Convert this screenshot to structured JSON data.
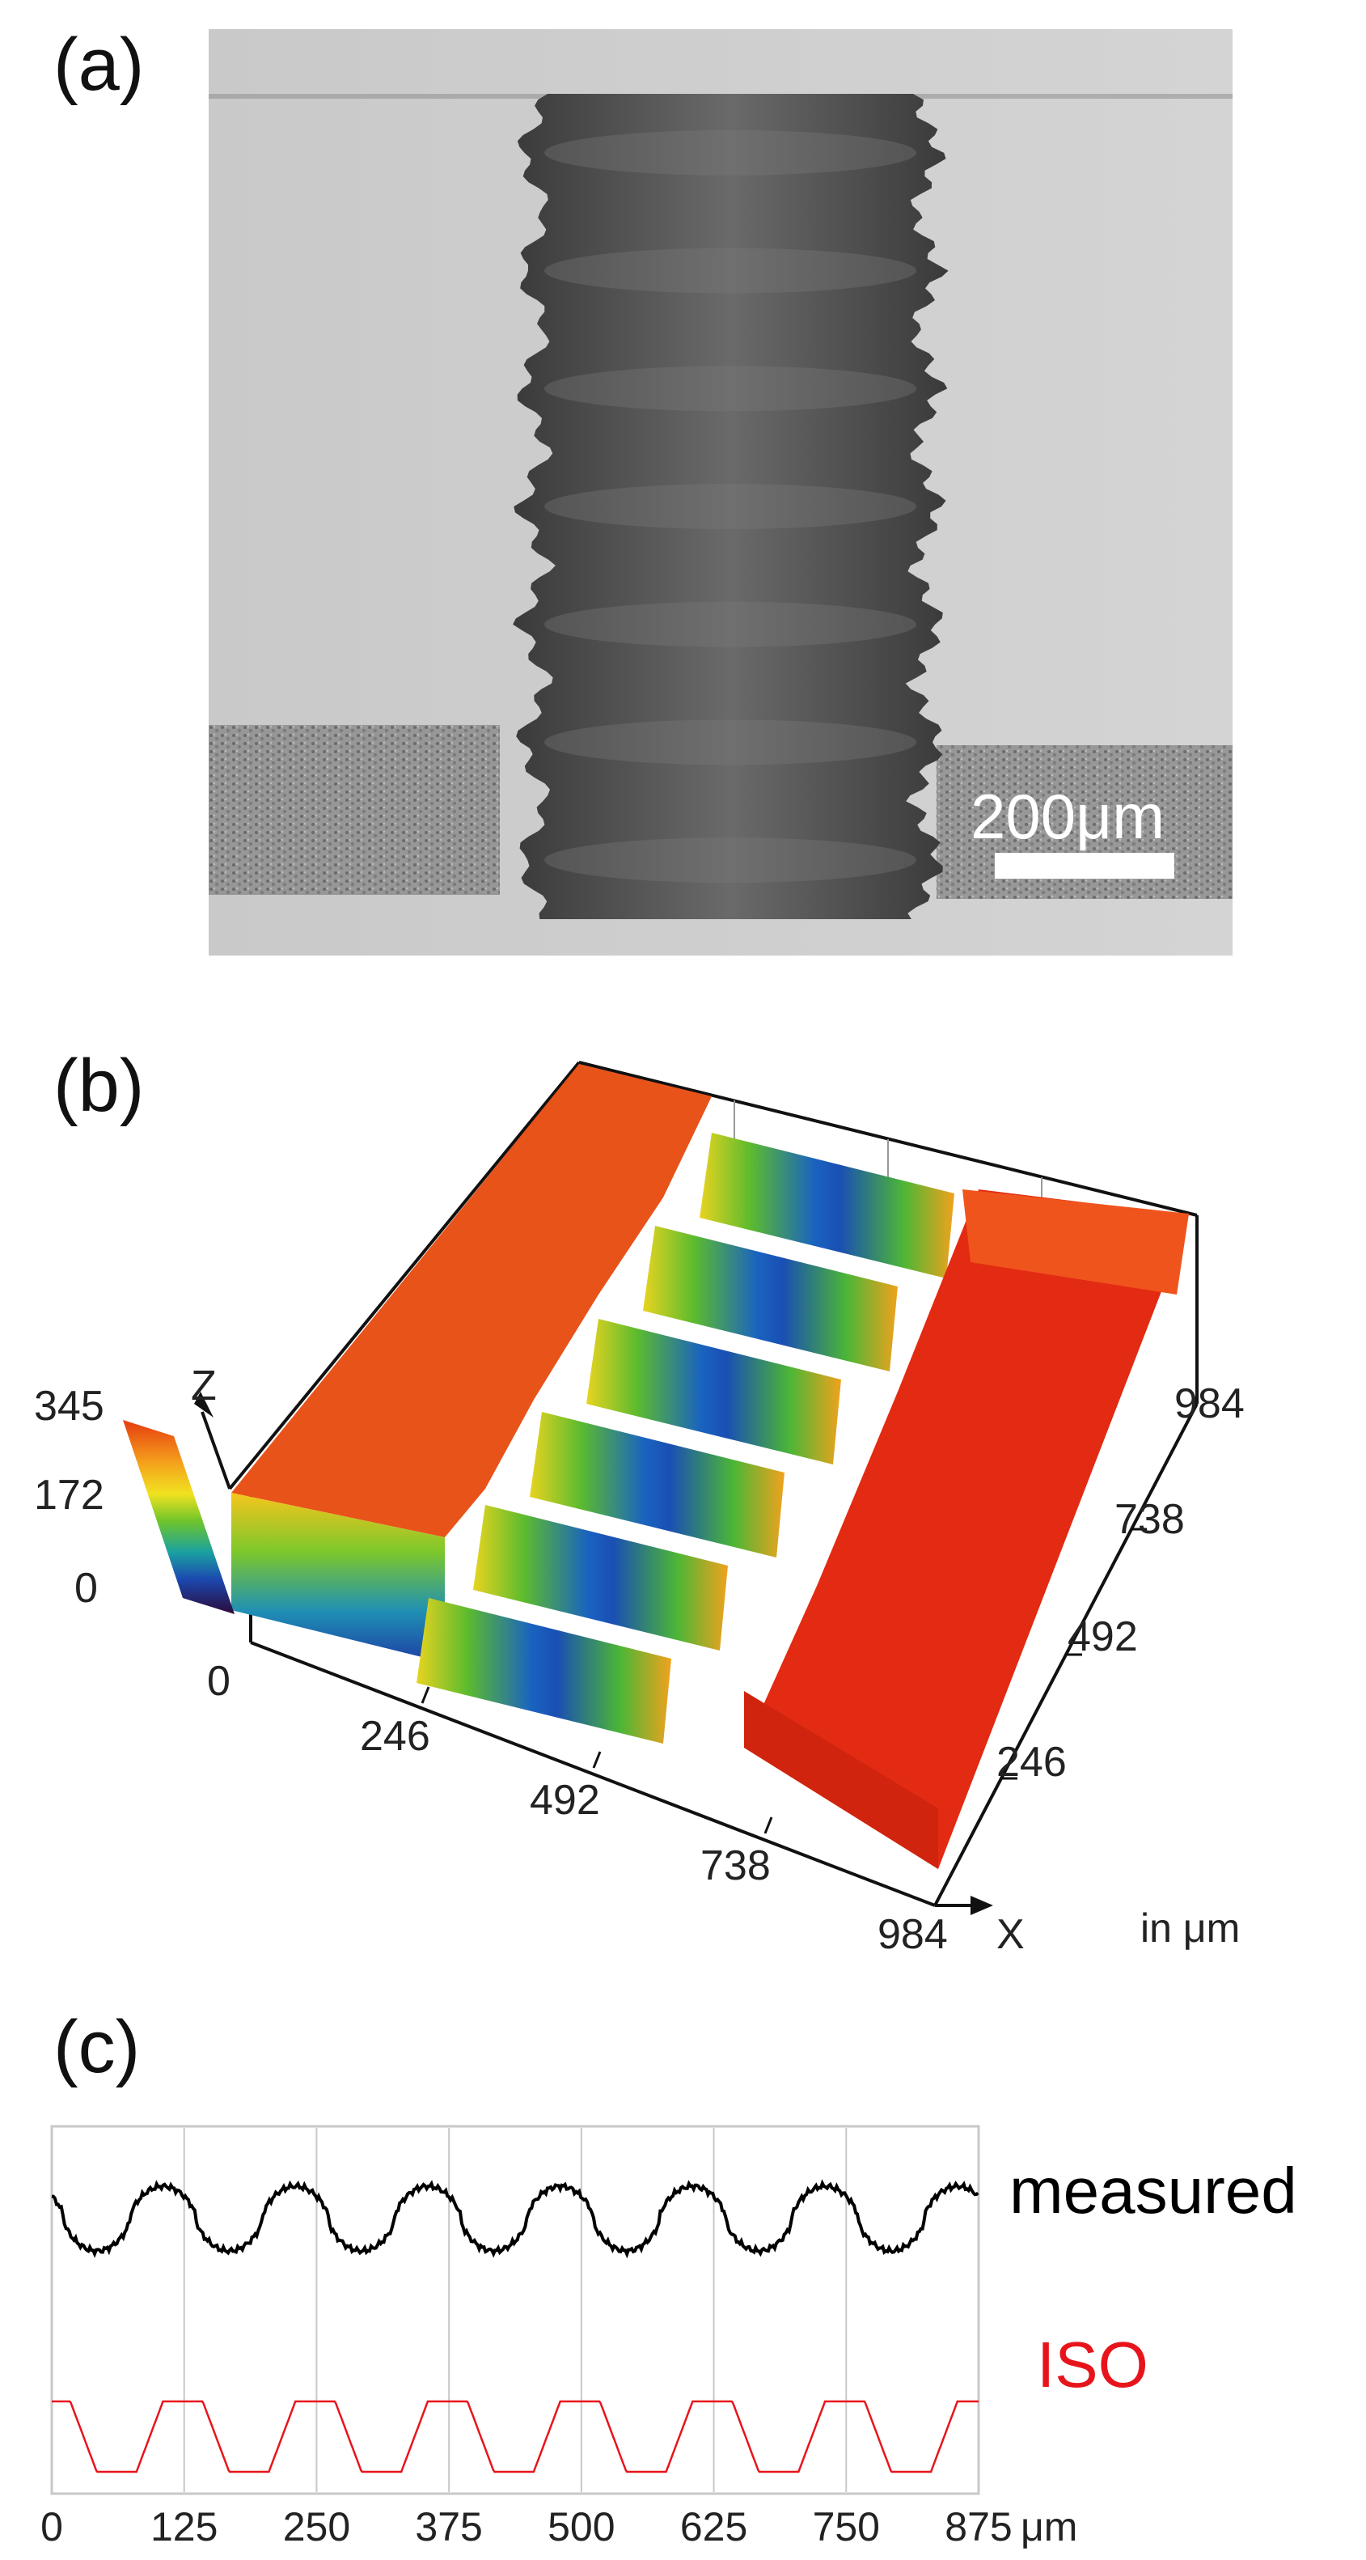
{
  "panels": {
    "a": {
      "label": "(a)",
      "scale_bar": "200μm"
    },
    "b": {
      "label": "(b)",
      "z_axis_label": "Z",
      "x_axis_label": "X",
      "color_bar_ticks": [
        "345",
        "172",
        "0"
      ],
      "origin_tick": "0",
      "x_ticks": [
        "246",
        "492",
        "738",
        "984"
      ],
      "y_ticks": [
        "246",
        "492",
        "738",
        "984"
      ],
      "unit_note": "in μm"
    },
    "c": {
      "label": "(c)",
      "x_ticks": [
        "0",
        "125",
        "250",
        "375",
        "500",
        "625",
        "750",
        "875"
      ],
      "x_unit": "μm",
      "series_labels": {
        "measured": "measured",
        "iso": "ISO"
      }
    }
  },
  "colors": {
    "measured": "#000000",
    "iso": "#e8141c",
    "grid": "#c8c8c8"
  },
  "chart_data": {
    "type": "line",
    "x_unit": "μm",
    "xlim": [
      0,
      875
    ],
    "grid": true,
    "series": [
      {
        "name": "measured",
        "period": 125,
        "shape": "rounded periodic profile"
      },
      {
        "name": "ISO",
        "period": 125,
        "shape": "trapezoidal periodic profile"
      }
    ]
  }
}
